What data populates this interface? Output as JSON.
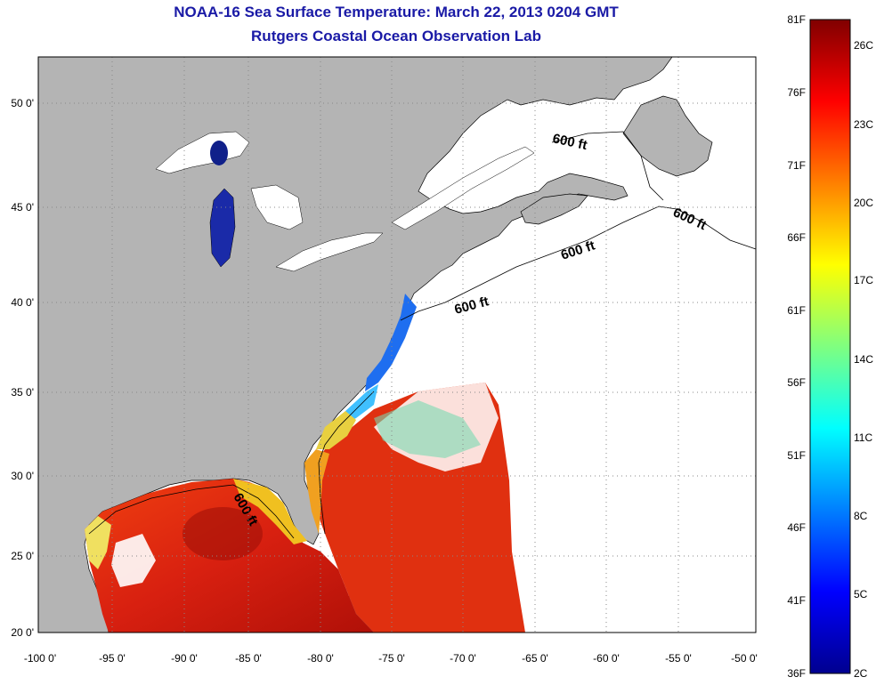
{
  "header": {
    "title": "NOAA-16 Sea Surface Temperature:  March 22, 2013 0204 GMT",
    "subtitle": "Rutgers Coastal Ocean Observation Lab"
  },
  "map": {
    "lon_labels": [
      "-100 0'",
      "-95 0'",
      "-90 0'",
      "-85 0'",
      "-80 0'",
      "-75 0'",
      "-70 0'",
      "-65 0'",
      "-60 0'",
      "-55 0'",
      "-50 0'"
    ],
    "lat_labels": [
      "50 0'",
      "45 0'",
      "40 0'",
      "35 0'",
      "30 0'",
      "25 0'",
      "20 0'"
    ],
    "contour_label": "600 ft",
    "land_color": "#b4b4b4",
    "ocean_no_data_color": "#ffffff"
  },
  "colorbar": {
    "f_labels": [
      "81F",
      "76F",
      "71F",
      "66F",
      "61F",
      "56F",
      "51F",
      "46F",
      "41F",
      "36F"
    ],
    "c_labels": [
      "26C",
      "23C",
      "20C",
      "17C",
      "14C",
      "11C",
      "8C",
      "5C",
      "2C"
    ]
  }
}
